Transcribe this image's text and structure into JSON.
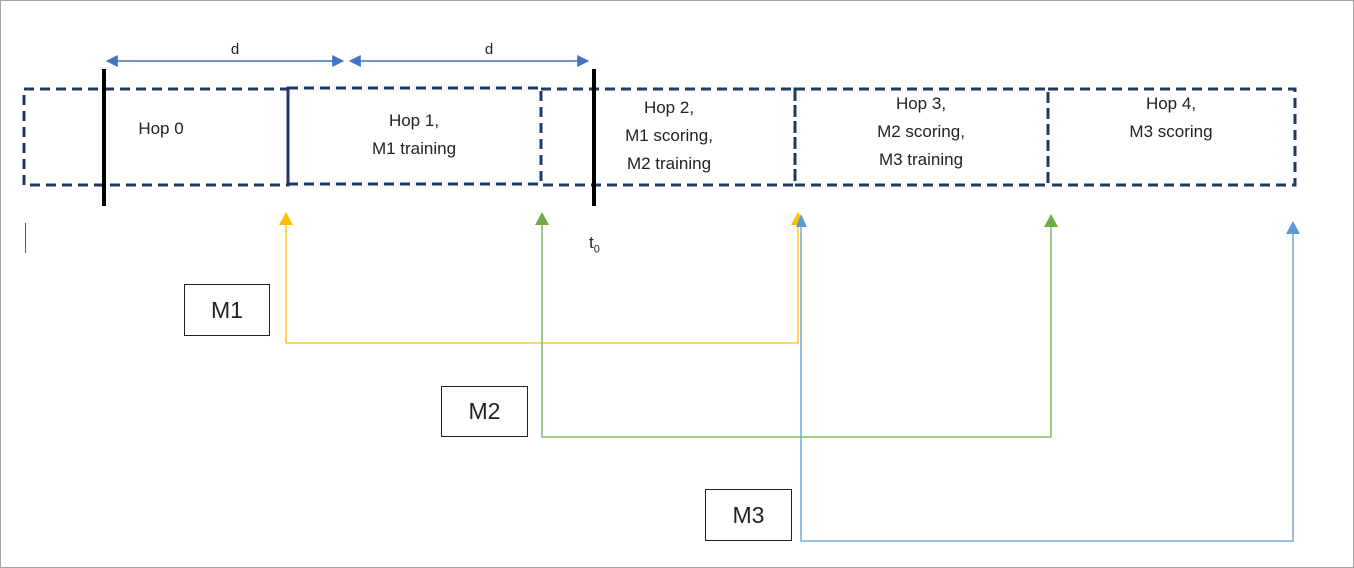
{
  "timeline": {
    "distance_label": "d",
    "t0_base": "t",
    "t0_sub": "0",
    "hops": [
      {
        "lines": [
          "Hop 0"
        ]
      },
      {
        "lines": [
          "Hop 1,",
          "M1 training"
        ]
      },
      {
        "lines": [
          "Hop 2,",
          "M1 scoring,",
          "M2 training"
        ]
      },
      {
        "lines": [
          "Hop 3,",
          "M2 scoring,",
          "M3 training"
        ]
      },
      {
        "lines": [
          "Hop 4,",
          "M3 scoring"
        ]
      }
    ]
  },
  "models": [
    {
      "label": "M1",
      "color": "#ffc000"
    },
    {
      "label": "M2",
      "color": "#70ad47"
    },
    {
      "label": "M3",
      "color": "#5b9bd5"
    }
  ],
  "colors": {
    "box_border": "#1f3864",
    "marker": "#000000",
    "d_arrow": "#4472c4"
  }
}
